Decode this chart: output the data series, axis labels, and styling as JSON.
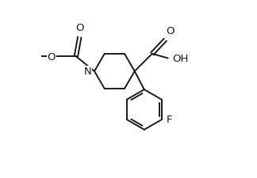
{
  "bg_color": "#ffffff",
  "line_color": "#1a1a1a",
  "line_width": 1.4,
  "font_size": 8.5,
  "figsize": [
    3.24,
    2.26
  ],
  "dpi": 100,
  "xlim": [
    0.0,
    1.0
  ],
  "ylim": [
    0.0,
    1.0
  ]
}
